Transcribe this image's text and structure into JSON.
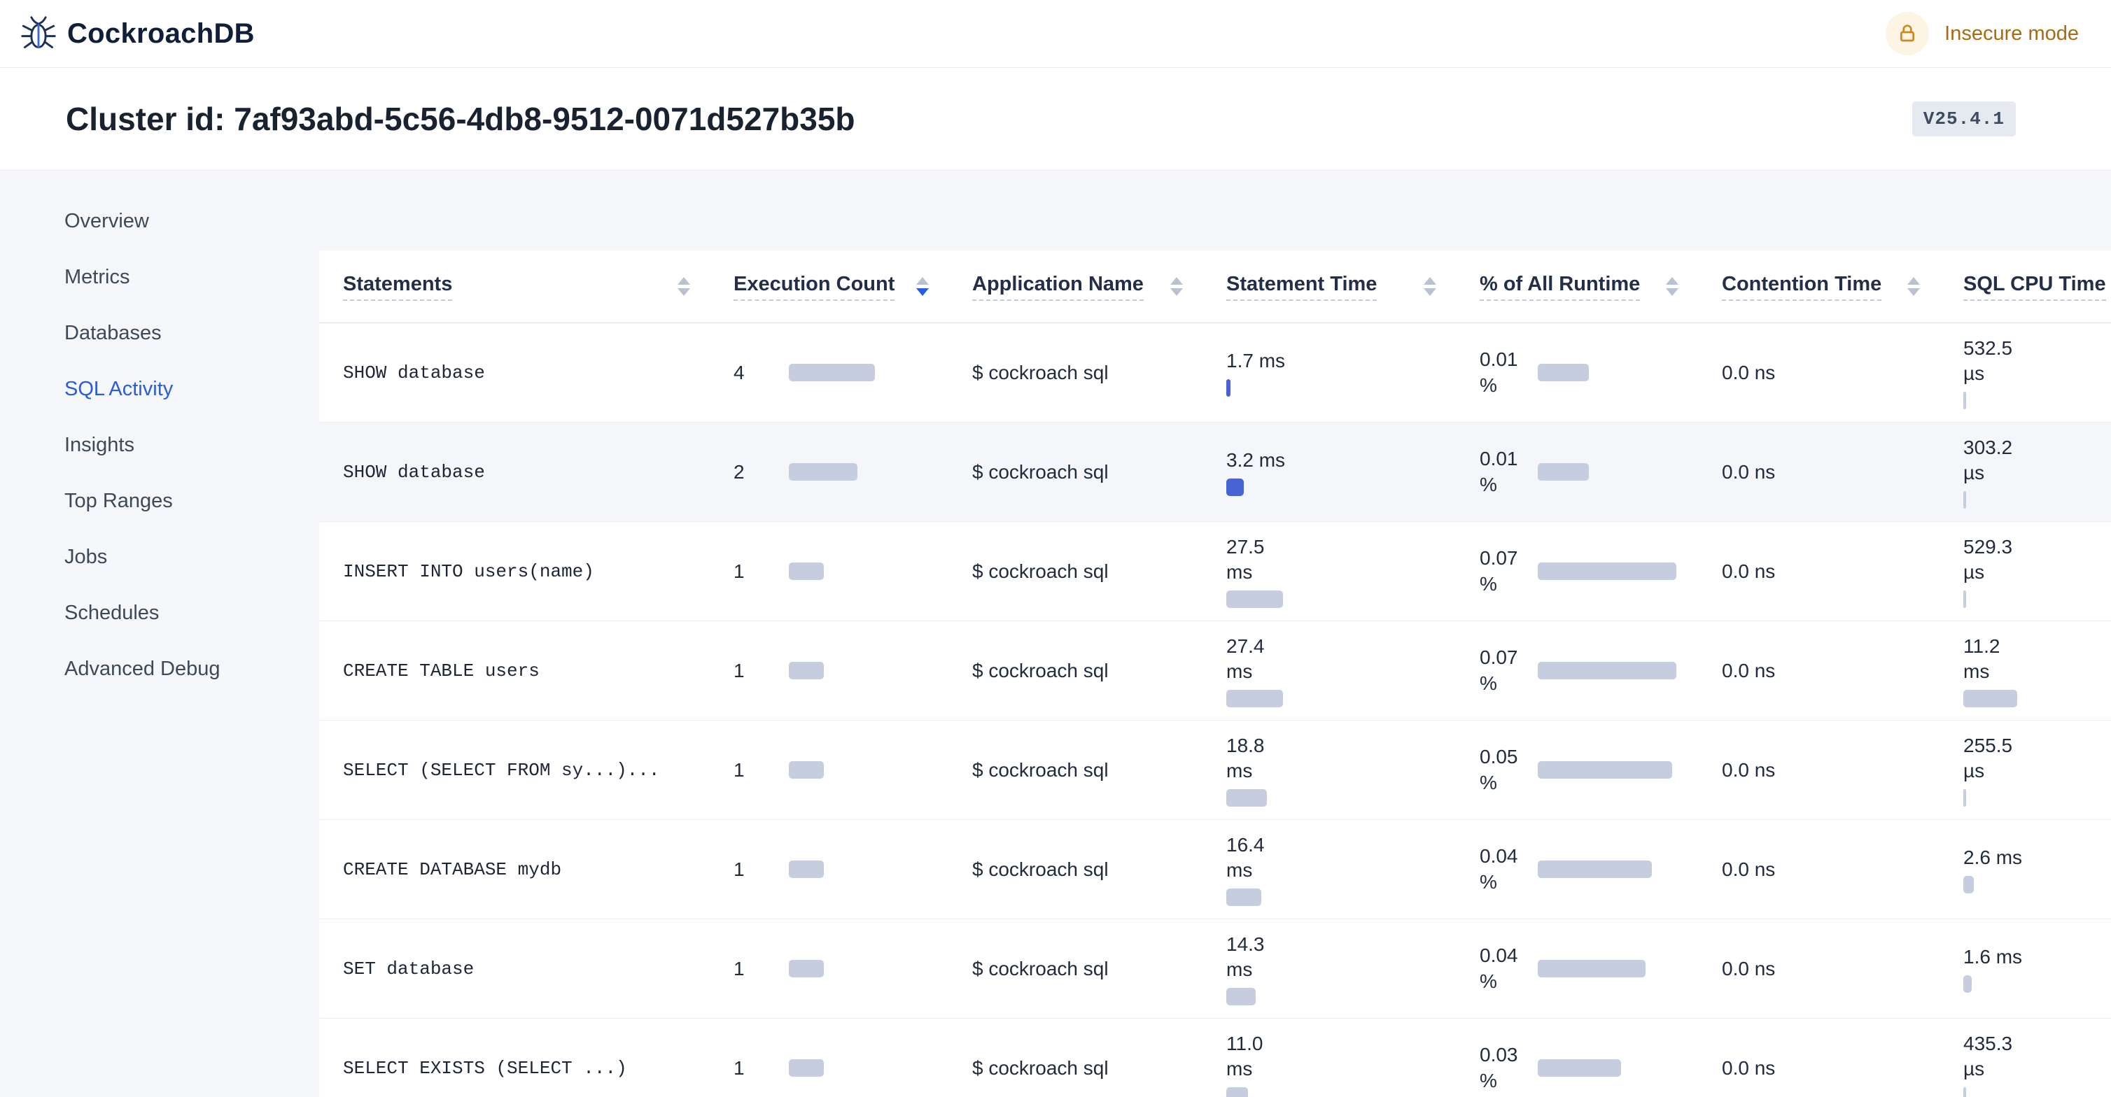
{
  "topbar": {
    "brand": "CockroachDB",
    "insecure_label": "Insecure mode"
  },
  "cluster": {
    "title": "Cluster id: 7af93abd-5c56-4db8-9512-0071d527b35b",
    "version_badge": "V25.4.1"
  },
  "sidebar": {
    "items": [
      {
        "label": "Overview",
        "active": false
      },
      {
        "label": "Metrics",
        "active": false
      },
      {
        "label": "Databases",
        "active": false
      },
      {
        "label": "SQL Activity",
        "active": true
      },
      {
        "label": "Insights",
        "active": false
      },
      {
        "label": "Top Ranges",
        "active": false
      },
      {
        "label": "Jobs",
        "active": false
      },
      {
        "label": "Schedules",
        "active": false
      },
      {
        "label": "Advanced Debug",
        "active": false
      }
    ]
  },
  "colors": {
    "accent_blue": "#2a5ddb",
    "bar_gray": "#c6cdde",
    "bar_blue": "#4a63d4",
    "insecure_amber": "#a96b10"
  },
  "table": {
    "columns": [
      {
        "label": "Statements",
        "sort": "none"
      },
      {
        "label": "Execution Count",
        "sort": "desc"
      },
      {
        "label": "Application Name",
        "sort": "none"
      },
      {
        "label": "Statement Time",
        "sort": "none"
      },
      {
        "label": "% of All Runtime",
        "sort": "none"
      },
      {
        "label": "Contention Time",
        "sort": "none"
      },
      {
        "label": "SQL CPU Time",
        "sort": "none"
      }
    ],
    "rows": [
      {
        "statement": "SHOW database",
        "execution_count": "4",
        "execution_bar": 123,
        "application_name": "$ cockroach sql",
        "statement_time": "1.7 ms",
        "statement_time_bar": 6,
        "statement_time_bar_accent": true,
        "runtime_pct": "0.01\n%",
        "runtime_bar": 73,
        "contention_time": "0.0 ns",
        "sql_cpu_time": "532.5\nµs",
        "sql_cpu_bar": 4,
        "highlighted": false
      },
      {
        "statement": "SHOW database",
        "execution_count": "2",
        "execution_bar": 98,
        "application_name": "$ cockroach sql",
        "statement_time": "3.2 ms",
        "statement_time_bar": 25,
        "statement_time_bar_accent": true,
        "runtime_pct": "0.01\n%",
        "runtime_bar": 73,
        "contention_time": "0.0 ns",
        "sql_cpu_time": "303.2\nµs",
        "sql_cpu_bar": 4,
        "highlighted": true
      },
      {
        "statement": "INSERT INTO users(name)",
        "execution_count": "1",
        "execution_bar": 50,
        "application_name": "$ cockroach sql",
        "statement_time": "27.5\nms",
        "statement_time_bar": 81,
        "statement_time_bar_accent": false,
        "runtime_pct": "0.07\n%",
        "runtime_bar": 198,
        "contention_time": "0.0 ns",
        "sql_cpu_time": "529.3\nµs",
        "sql_cpu_bar": 4,
        "highlighted": false
      },
      {
        "statement": "CREATE TABLE users",
        "execution_count": "1",
        "execution_bar": 50,
        "application_name": "$ cockroach sql",
        "statement_time": "27.4\nms",
        "statement_time_bar": 81,
        "statement_time_bar_accent": false,
        "runtime_pct": "0.07\n%",
        "runtime_bar": 198,
        "contention_time": "0.0 ns",
        "sql_cpu_time": "11.2\nms",
        "sql_cpu_bar": 77,
        "highlighted": false
      },
      {
        "statement": "SELECT (SELECT FROM sy...)...",
        "execution_count": "1",
        "execution_bar": 50,
        "application_name": "$ cockroach sql",
        "statement_time": "18.8\nms",
        "statement_time_bar": 58,
        "statement_time_bar_accent": false,
        "runtime_pct": "0.05\n%",
        "runtime_bar": 192,
        "contention_time": "0.0 ns",
        "sql_cpu_time": "255.5\nµs",
        "sql_cpu_bar": 4,
        "highlighted": false
      },
      {
        "statement": "CREATE DATABASE mydb",
        "execution_count": "1",
        "execution_bar": 50,
        "application_name": "$ cockroach sql",
        "statement_time": "16.4\nms",
        "statement_time_bar": 50,
        "statement_time_bar_accent": false,
        "runtime_pct": "0.04\n%",
        "runtime_bar": 163,
        "contention_time": "0.0 ns",
        "sql_cpu_time": "2.6 ms",
        "sql_cpu_bar": 15,
        "highlighted": false
      },
      {
        "statement": "SET database",
        "execution_count": "1",
        "execution_bar": 50,
        "application_name": "$ cockroach sql",
        "statement_time": "14.3\nms",
        "statement_time_bar": 42,
        "statement_time_bar_accent": false,
        "runtime_pct": "0.04\n%",
        "runtime_bar": 154,
        "contention_time": "0.0 ns",
        "sql_cpu_time": "1.6 ms",
        "sql_cpu_bar": 12,
        "highlighted": false
      },
      {
        "statement": "SELECT EXISTS (SELECT ...)",
        "execution_count": "1",
        "execution_bar": 50,
        "application_name": "$ cockroach sql",
        "statement_time": "11.0\nms",
        "statement_time_bar": 31,
        "statement_time_bar_accent": false,
        "runtime_pct": "0.03\n%",
        "runtime_bar": 119,
        "contention_time": "0.0 ns",
        "sql_cpu_time": "435.3\nµs",
        "sql_cpu_bar": 4,
        "highlighted": false
      }
    ]
  }
}
